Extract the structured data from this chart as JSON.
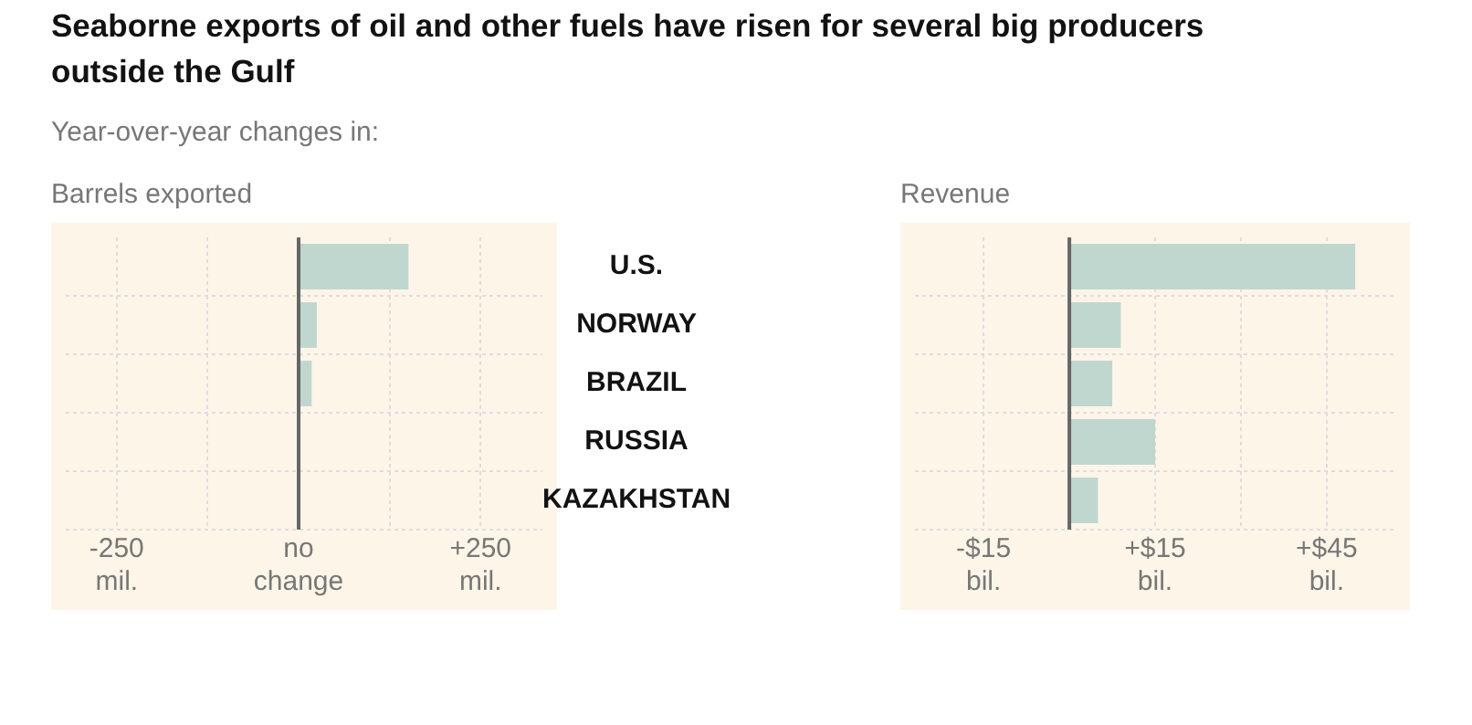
{
  "chart_data": [
    {
      "type": "bar",
      "orientation": "horizontal",
      "title": "Seaborne exports of oil and other fuels have risen for several big producers outside the Gulf",
      "subtitle": "Year-over-year changes in:",
      "xlabel": "Barrels exported",
      "categories": [
        "U.S.",
        "NORWAY",
        "BRAZIL",
        "RUSSIA",
        "KAZAKHSTAN"
      ],
      "values": [
        151,
        25,
        18,
        0,
        0
      ],
      "color": "#c0d7d0",
      "xlim": [
        -320,
        335
      ],
      "xticks": [
        {
          "value": -250,
          "label": "-250 mil."
        },
        {
          "value": -125,
          "label": null
        },
        {
          "value": 0,
          "label": "no change"
        },
        {
          "value": 125,
          "label": null
        },
        {
          "value": 250,
          "label": "+250 mil."
        }
      ],
      "grid": true,
      "legend": false
    },
    {
      "type": "bar",
      "orientation": "horizontal",
      "xlabel": "Revenue",
      "categories": [
        null,
        null,
        null,
        null,
        null
      ],
      "values": [
        50,
        9,
        7.5,
        15,
        5
      ],
      "color": "#c0d7d0",
      "xlim": [
        -27,
        57
      ],
      "xticks": [
        {
          "value": -15,
          "label": "-$15 bil."
        },
        {
          "value": 0,
          "label": null
        },
        {
          "value": 15,
          "label": "+$15 bil."
        },
        {
          "value": 30,
          "label": null
        },
        {
          "value": 45,
          "label": "+$45 bil."
        }
      ],
      "grid": true,
      "legend": false,
      "tick_labels": "x"
    }
  ]
}
